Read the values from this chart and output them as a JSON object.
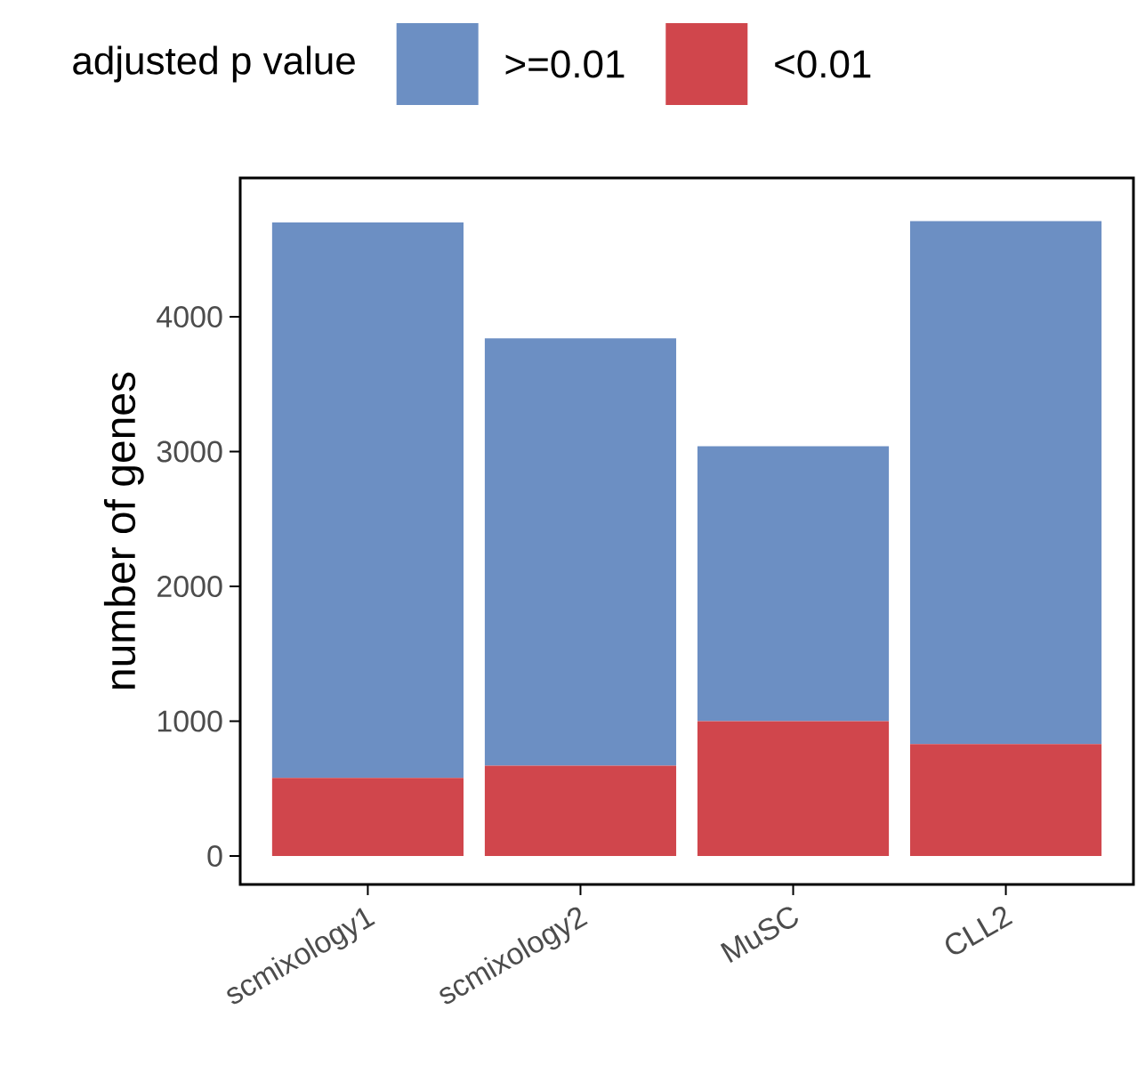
{
  "chart_data": {
    "type": "bar",
    "stacked": true,
    "categories": [
      "scmixology1",
      "scmixology2",
      "MuSC",
      "CLL2"
    ],
    "series": [
      {
        "name": "<0.01",
        "color": "#d0464c",
        "values": [
          580,
          670,
          1000,
          830
        ]
      },
      {
        "name": ">=0.01",
        "color": "#6c8fc3",
        "values": [
          4120,
          3170,
          2040,
          3880
        ]
      }
    ],
    "ylabel": "number of genes",
    "legend_title": "adjusted p value",
    "legend": "top",
    "ylim": [
      -211,
      5030
    ],
    "yticks": [
      0,
      1000,
      2000,
      3000,
      4000
    ]
  }
}
